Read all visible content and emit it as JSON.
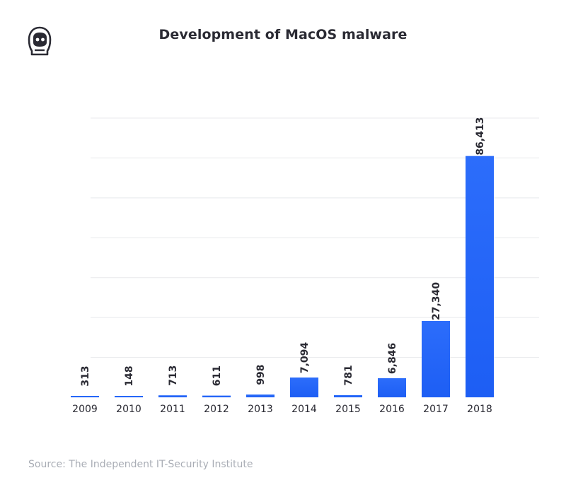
{
  "header": {
    "logo_icon": "astronaut-helmet-icon",
    "title": "Development of MacOS malware"
  },
  "chart_data": {
    "type": "bar",
    "title": "Development of MacOS malware",
    "xlabel": "",
    "ylabel": "",
    "categories": [
      "2009",
      "2010",
      "2011",
      "2012",
      "2013",
      "2014",
      "2015",
      "2016",
      "2017",
      "2018"
    ],
    "values": [
      313,
      148,
      713,
      611,
      998,
      7094,
      781,
      6846,
      27340,
      86413
    ],
    "data_labels": [
      "313",
      "148",
      "713",
      "611",
      "998",
      "7,094",
      "781",
      "6,846",
      "27,340",
      "86,413"
    ],
    "ylim": [
      0,
      100000
    ],
    "grid": true,
    "legend": "none",
    "colors": {
      "bar_top": "#2c6dfb",
      "bar_bottom": "#1d5ef4",
      "grid": "#e8e9ec"
    }
  },
  "footer": {
    "source": "Source: The Independent IT-Security Institute"
  }
}
